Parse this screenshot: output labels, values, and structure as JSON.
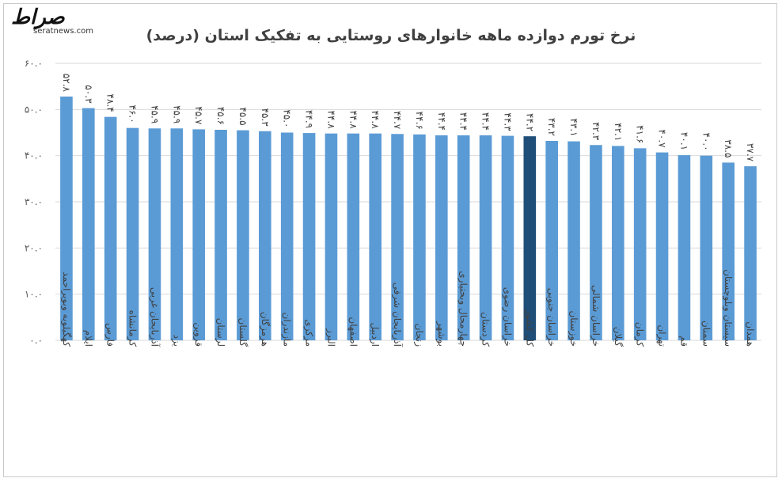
{
  "brand": {
    "logo_text": "صراط",
    "url": "seratnews.com",
    "logo_color": "#111111"
  },
  "chart_data": {
    "type": "bar",
    "title": "نرخ تورم دوازده ماهه خانوارهای روستایی به تفکیک استان (درصد)",
    "ylim": [
      0,
      60
    ],
    "yticks": [
      0,
      10,
      20,
      30,
      40,
      50,
      60
    ],
    "ytick_labels": [
      "۰.۰",
      "۱۰.۰",
      "۲۰.۰",
      "۳۰.۰",
      "۴۰.۰",
      "۵۰.۰",
      "۶۰.۰"
    ],
    "grid": true,
    "colors": {
      "bar": "#5b9bd5",
      "highlight": "#1f4e79"
    },
    "highlight_category": "کل کشور",
    "categories": [
      "کهگیلویه وبویراحمد",
      "ایلام",
      "فارس",
      "کرمانشاه",
      "آذربایجان غربی",
      "یزد",
      "قزوین",
      "لرستان",
      "گلستان",
      "هرمزگان",
      "مازندران",
      "مرکزی",
      "البرز",
      "اصفهان",
      "اردبیل",
      "آذربایجان شرقی",
      "زنجان",
      "بوشهر",
      "چهارمحال وبختیاری",
      "کردستان",
      "خراسان رضوی",
      "کل کشور",
      "خراسان جنوبی",
      "خوزستان",
      "خراسان شمالی",
      "گیلان",
      "کرمان",
      "تهران",
      "قم",
      "سمنان",
      "سیستان وبلوچستان",
      "همدان"
    ],
    "values": [
      52.8,
      50.3,
      48.4,
      46.0,
      45.9,
      45.9,
      45.7,
      45.6,
      45.5,
      45.3,
      45.0,
      44.9,
      44.8,
      44.8,
      44.8,
      44.7,
      44.6,
      44.4,
      44.4,
      44.4,
      44.3,
      44.2,
      43.2,
      43.1,
      42.3,
      42.1,
      41.6,
      40.7,
      40.1,
      40.0,
      38.5,
      37.7
    ],
    "value_labels": [
      "۵۲.۸",
      "۵۰.۳",
      "۴۸.۴",
      "۴۶.۰",
      "۴۵.۹",
      "۴۵.۹",
      "۴۵.۷",
      "۴۵.۶",
      "۴۵.۵",
      "۴۵.۳",
      "۴۵.۰",
      "۴۴.۹",
      "۴۴.۸",
      "۴۴.۸",
      "۴۴.۸",
      "۴۴.۷",
      "۴۴.۶",
      "۴۴.۴",
      "۴۴.۴",
      "۴۴.۴",
      "۴۴.۳",
      "۴۴.۲",
      "۴۳.۲",
      "۴۳.۱",
      "۴۲.۳",
      "۴۲.۱",
      "۴۱.۶",
      "۴۰.۷",
      "۴۰.۱",
      "۴۰.۰",
      "۳۸.۵",
      "۳۷.۷"
    ]
  }
}
